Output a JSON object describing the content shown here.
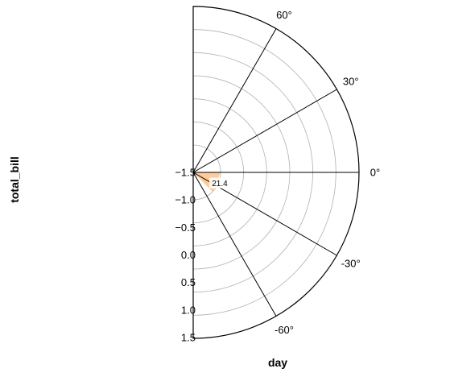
{
  "chart_data": {
    "type": "bar",
    "projection": "polar",
    "xlabel": "day",
    "ylabel": "total_bill",
    "theta_range_deg": [
      -90,
      90
    ],
    "theta_ticks": [
      {
        "value": 60,
        "label": "60°"
      },
      {
        "value": 30,
        "label": "30°"
      },
      {
        "value": 0,
        "label": "0°"
      },
      {
        "value": -30,
        "label": "-30°"
      },
      {
        "value": -60,
        "label": "-60°"
      }
    ],
    "radial_range": [
      -1.5,
      1.5
    ],
    "radial_ticks": [
      {
        "value": -1.5,
        "label": "−1.5"
      },
      {
        "value": -1.0,
        "label": "−1.0"
      },
      {
        "value": -0.5,
        "label": "−0.5"
      },
      {
        "value": 0.0,
        "label": "0.0"
      },
      {
        "value": 0.5,
        "label": "0.5"
      },
      {
        "value": 1.0,
        "label": "1.0"
      },
      {
        "value": 1.5,
        "label": "1.5"
      }
    ],
    "grid": true,
    "bars": [
      {
        "theta_start_deg": 0,
        "theta_end_deg": -45,
        "value": 21.4,
        "label": "21.4",
        "color": "#ffcc99"
      }
    ]
  }
}
